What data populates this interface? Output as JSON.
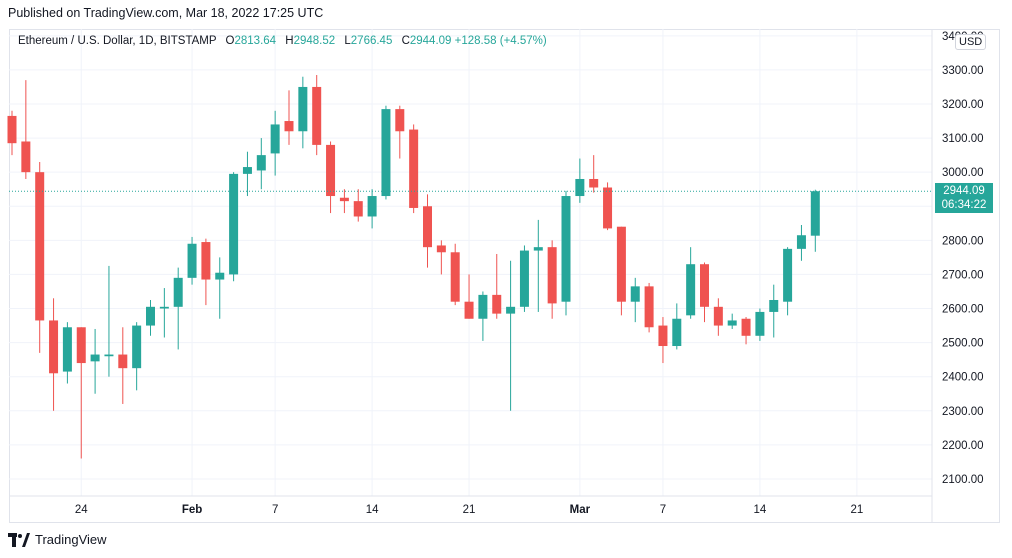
{
  "header": {
    "published": "Published on TradingView.com, Mar 18, 2022 17:25 UTC"
  },
  "legend": {
    "symbol": "Ethereum / U.S. Dollar, 1D, BITSTAMP",
    "o_label": "O",
    "o_value": "2813.64",
    "h_label": "H",
    "h_value": "2948.52",
    "l_label": "L",
    "l_value": "2766.45",
    "c_label": "C",
    "c_value": "2944.09",
    "change": "+128.58 (+4.57%)"
  },
  "currency_button": "USD",
  "last_price": {
    "price": "2944.09",
    "countdown": "06:34:22"
  },
  "footer": {
    "brand": "TradingView"
  },
  "colors": {
    "up": "#26a69a",
    "down": "#ef5350",
    "grid": "#f0f3fa",
    "text": "#131722"
  },
  "chart_data": {
    "type": "candlestick",
    "title": "Ethereum / U.S. Dollar, 1D, BITSTAMP",
    "xlabel": "",
    "ylabel": "USD",
    "ylim": [
      2050,
      3420
    ],
    "y_ticks": [
      2100,
      2200,
      2300,
      2400,
      2500,
      2600,
      2700,
      2800,
      2900,
      3000,
      3100,
      3200,
      3300,
      3400
    ],
    "y_tick_labels": [
      "2100.00",
      "2200.00",
      "2300.00",
      "2400.00",
      "2500.00",
      "2600.00",
      "2700.00",
      "2800.00",
      "2900.00",
      "3000.00",
      "3100.00",
      "3200.00",
      "3300.00",
      "3400.00"
    ],
    "x_ticks": [
      {
        "index": 5,
        "label": "24"
      },
      {
        "index": 13,
        "label": "Feb"
      },
      {
        "index": 19,
        "label": "7"
      },
      {
        "index": 26,
        "label": "14"
      },
      {
        "index": 33,
        "label": "21"
      },
      {
        "index": 41,
        "label": "Mar"
      },
      {
        "index": 47,
        "label": "7"
      },
      {
        "index": 54,
        "label": "14"
      },
      {
        "index": 61,
        "label": "21"
      }
    ],
    "last_price": 2944.09,
    "candles": [
      {
        "o": 3165,
        "h": 3180,
        "l": 3050,
        "c": 3085
      },
      {
        "o": 3090,
        "h": 3270,
        "l": 2980,
        "c": 3000
      },
      {
        "o": 3000,
        "h": 3030,
        "l": 2470,
        "c": 2565
      },
      {
        "o": 2565,
        "h": 2630,
        "l": 2300,
        "c": 2410
      },
      {
        "o": 2415,
        "h": 2560,
        "l": 2380,
        "c": 2545
      },
      {
        "o": 2545,
        "h": 2545,
        "l": 2160,
        "c": 2440
      },
      {
        "o": 2445,
        "h": 2540,
        "l": 2350,
        "c": 2465
      },
      {
        "o": 2460,
        "h": 2725,
        "l": 2400,
        "c": 2465
      },
      {
        "o": 2465,
        "h": 2545,
        "l": 2320,
        "c": 2425
      },
      {
        "o": 2425,
        "h": 2560,
        "l": 2360,
        "c": 2550
      },
      {
        "o": 2550,
        "h": 2625,
        "l": 2520,
        "c": 2605
      },
      {
        "o": 2600,
        "h": 2660,
        "l": 2515,
        "c": 2605
      },
      {
        "o": 2605,
        "h": 2720,
        "l": 2480,
        "c": 2690
      },
      {
        "o": 2690,
        "h": 2810,
        "l": 2670,
        "c": 2790
      },
      {
        "o": 2795,
        "h": 2805,
        "l": 2610,
        "c": 2685
      },
      {
        "o": 2685,
        "h": 2750,
        "l": 2570,
        "c": 2705
      },
      {
        "o": 2700,
        "h": 3000,
        "l": 2680,
        "c": 2995
      },
      {
        "o": 2995,
        "h": 3060,
        "l": 2930,
        "c": 3015
      },
      {
        "o": 3005,
        "h": 3100,
        "l": 2950,
        "c": 3050
      },
      {
        "o": 3055,
        "h": 3180,
        "l": 2990,
        "c": 3140
      },
      {
        "o": 3150,
        "h": 3240,
        "l": 3080,
        "c": 3120
      },
      {
        "o": 3120,
        "h": 3280,
        "l": 3070,
        "c": 3250
      },
      {
        "o": 3250,
        "h": 3285,
        "l": 3050,
        "c": 3080
      },
      {
        "o": 3080,
        "h": 3090,
        "l": 2880,
        "c": 2930
      },
      {
        "o": 2925,
        "h": 2950,
        "l": 2880,
        "c": 2915
      },
      {
        "o": 2915,
        "h": 2950,
        "l": 2855,
        "c": 2870
      },
      {
        "o": 2870,
        "h": 2950,
        "l": 2835,
        "c": 2930
      },
      {
        "o": 2930,
        "h": 3195,
        "l": 2920,
        "c": 3185
      },
      {
        "o": 3185,
        "h": 3195,
        "l": 3040,
        "c": 3120
      },
      {
        "o": 3125,
        "h": 3140,
        "l": 2880,
        "c": 2895
      },
      {
        "o": 2900,
        "h": 2935,
        "l": 2720,
        "c": 2780
      },
      {
        "o": 2785,
        "h": 2800,
        "l": 2700,
        "c": 2765
      },
      {
        "o": 2765,
        "h": 2790,
        "l": 2610,
        "c": 2620
      },
      {
        "o": 2620,
        "h": 2700,
        "l": 2570,
        "c": 2570
      },
      {
        "o": 2570,
        "h": 2650,
        "l": 2505,
        "c": 2640
      },
      {
        "o": 2640,
        "h": 2760,
        "l": 2570,
        "c": 2585
      },
      {
        "o": 2585,
        "h": 2740,
        "l": 2300,
        "c": 2605
      },
      {
        "o": 2605,
        "h": 2785,
        "l": 2590,
        "c": 2770
      },
      {
        "o": 2770,
        "h": 2860,
        "l": 2590,
        "c": 2780
      },
      {
        "o": 2780,
        "h": 2800,
        "l": 2570,
        "c": 2615
      },
      {
        "o": 2620,
        "h": 2945,
        "l": 2580,
        "c": 2930
      },
      {
        "o": 2930,
        "h": 3040,
        "l": 2910,
        "c": 2980
      },
      {
        "o": 2980,
        "h": 3050,
        "l": 2940,
        "c": 2955
      },
      {
        "o": 2955,
        "h": 2970,
        "l": 2830,
        "c": 2835
      },
      {
        "o": 2840,
        "h": 2840,
        "l": 2580,
        "c": 2620
      },
      {
        "o": 2620,
        "h": 2690,
        "l": 2560,
        "c": 2665
      },
      {
        "o": 2665,
        "h": 2675,
        "l": 2530,
        "c": 2545
      },
      {
        "o": 2550,
        "h": 2575,
        "l": 2440,
        "c": 2490
      },
      {
        "o": 2490,
        "h": 2615,
        "l": 2480,
        "c": 2570
      },
      {
        "o": 2580,
        "h": 2780,
        "l": 2570,
        "c": 2730
      },
      {
        "o": 2730,
        "h": 2735,
        "l": 2560,
        "c": 2605
      },
      {
        "o": 2605,
        "h": 2630,
        "l": 2520,
        "c": 2550
      },
      {
        "o": 2550,
        "h": 2585,
        "l": 2540,
        "c": 2565
      },
      {
        "o": 2570,
        "h": 2575,
        "l": 2495,
        "c": 2520
      },
      {
        "o": 2520,
        "h": 2600,
        "l": 2505,
        "c": 2590
      },
      {
        "o": 2590,
        "h": 2670,
        "l": 2515,
        "c": 2625
      },
      {
        "o": 2620,
        "h": 2780,
        "l": 2580,
        "c": 2775
      },
      {
        "o": 2775,
        "h": 2845,
        "l": 2740,
        "c": 2815
      },
      {
        "o": 2813.64,
        "h": 2948.52,
        "l": 2766.45,
        "c": 2944.09
      }
    ]
  }
}
